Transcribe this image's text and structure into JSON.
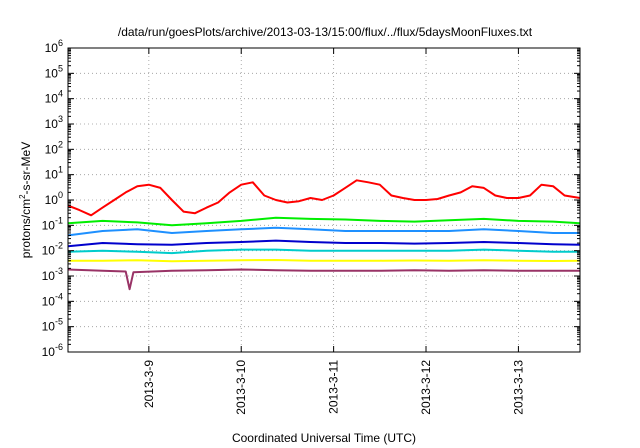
{
  "chart_data": {
    "type": "line",
    "title": "/data/run/goesPlots/archive/2013-03-13/15:00/flux/../flux/5daysMoonFluxes.txt",
    "xlabel": "Coordinated Universal Time (UTC)",
    "ylabel": "protons/cm²-s-sr-MeV",
    "ylabel_parts": {
      "pre": "protons/cm",
      "sup": "2",
      "post": "-s-sr-MeV"
    },
    "y_scale": "log",
    "ylim": [
      1e-06,
      1000000.0
    ],
    "y_ticks": [
      {
        "base": "10",
        "exp": "-6"
      },
      {
        "base": "10",
        "exp": "-5"
      },
      {
        "base": "10",
        "exp": "-4"
      },
      {
        "base": "10",
        "exp": "-3"
      },
      {
        "base": "10",
        "exp": "-2"
      },
      {
        "base": "10",
        "exp": "-1"
      },
      {
        "base": "10",
        "exp": "0"
      },
      {
        "base": "10",
        "exp": "1"
      },
      {
        "base": "10",
        "exp": "2"
      },
      {
        "base": "10",
        "exp": "3"
      },
      {
        "base": "10",
        "exp": "4"
      },
      {
        "base": "10",
        "exp": "5"
      },
      {
        "base": "10",
        "exp": "6"
      }
    ],
    "x_range_days": [
      "2013-03-08 03:00",
      "2013-03-13 16:00"
    ],
    "x_ticks": [
      "2013-3-9",
      "2013-3-10",
      "2013-3-11",
      "2013-3-12",
      "2013-3-13"
    ],
    "grid": true,
    "legend": "none",
    "series": [
      {
        "color": "#ff0000",
        "x": [
          "2013-03-08 03:00",
          "2013-03-08 06:00",
          "2013-03-08 09:00",
          "2013-03-08 12:00",
          "2013-03-08 15:00",
          "2013-03-08 18:00",
          "2013-03-08 21:00",
          "2013-03-09 00:00",
          "2013-03-09 03:00",
          "2013-03-09 06:00",
          "2013-03-09 09:00",
          "2013-03-09 12:00",
          "2013-03-09 15:00",
          "2013-03-09 18:00",
          "2013-03-09 21:00",
          "2013-03-10 00:00",
          "2013-03-10 03:00",
          "2013-03-10 06:00",
          "2013-03-10 09:00",
          "2013-03-10 12:00",
          "2013-03-10 15:00",
          "2013-03-10 18:00",
          "2013-03-10 21:00",
          "2013-03-11 00:00",
          "2013-03-11 03:00",
          "2013-03-11 06:00",
          "2013-03-11 09:00",
          "2013-03-11 12:00",
          "2013-03-11 15:00",
          "2013-03-11 18:00",
          "2013-03-11 21:00",
          "2013-03-12 00:00",
          "2013-03-12 03:00",
          "2013-03-12 06:00",
          "2013-03-12 09:00",
          "2013-03-12 12:00",
          "2013-03-12 15:00",
          "2013-03-12 18:00",
          "2013-03-12 21:00",
          "2013-03-13 00:00",
          "2013-03-13 03:00",
          "2013-03-13 06:00",
          "2013-03-13 09:00",
          "2013-03-13 12:00",
          "2013-03-13 16:00"
        ],
        "values": [
          0.6,
          0.4,
          0.25,
          0.5,
          1.0,
          2.0,
          3.5,
          4.0,
          3.0,
          1.0,
          0.35,
          0.3,
          0.5,
          0.8,
          2.0,
          4.0,
          5.0,
          1.5,
          1.0,
          0.8,
          0.9,
          1.2,
          1.0,
          1.5,
          3.0,
          6.0,
          5.0,
          4.0,
          1.5,
          1.2,
          1.0,
          1.0,
          1.1,
          1.5,
          2.0,
          3.5,
          3.0,
          1.5,
          1.2,
          1.2,
          1.5,
          4.0,
          3.5,
          1.5,
          1.2
        ]
      },
      {
        "color": "#00ee00",
        "x": [
          "2013-03-08 03:00",
          "2013-03-08 12:00",
          "2013-03-08 21:00",
          "2013-03-09 06:00",
          "2013-03-09 15:00",
          "2013-03-10 00:00",
          "2013-03-10 09:00",
          "2013-03-10 18:00",
          "2013-03-11 03:00",
          "2013-03-11 12:00",
          "2013-03-11 21:00",
          "2013-03-12 06:00",
          "2013-03-12 15:00",
          "2013-03-13 00:00",
          "2013-03-13 09:00",
          "2013-03-13 16:00"
        ],
        "values": [
          0.12,
          0.15,
          0.13,
          0.1,
          0.12,
          0.15,
          0.2,
          0.18,
          0.17,
          0.15,
          0.14,
          0.16,
          0.18,
          0.15,
          0.14,
          0.12
        ]
      },
      {
        "color": "#1e90ff",
        "x": [
          "2013-03-08 03:00",
          "2013-03-08 12:00",
          "2013-03-08 21:00",
          "2013-03-09 06:00",
          "2013-03-09 15:00",
          "2013-03-10 00:00",
          "2013-03-10 09:00",
          "2013-03-10 18:00",
          "2013-03-11 03:00",
          "2013-03-11 12:00",
          "2013-03-11 21:00",
          "2013-03-12 06:00",
          "2013-03-12 15:00",
          "2013-03-13 00:00",
          "2013-03-13 09:00",
          "2013-03-13 16:00"
        ],
        "values": [
          0.04,
          0.06,
          0.07,
          0.05,
          0.06,
          0.07,
          0.08,
          0.07,
          0.06,
          0.06,
          0.06,
          0.06,
          0.07,
          0.06,
          0.05,
          0.05
        ]
      },
      {
        "color": "#0000cc",
        "x": [
          "2013-03-08 03:00",
          "2013-03-08 12:00",
          "2013-03-08 21:00",
          "2013-03-09 06:00",
          "2013-03-09 15:00",
          "2013-03-10 00:00",
          "2013-03-10 09:00",
          "2013-03-10 18:00",
          "2013-03-11 03:00",
          "2013-03-11 12:00",
          "2013-03-11 21:00",
          "2013-03-12 06:00",
          "2013-03-12 15:00",
          "2013-03-13 00:00",
          "2013-03-13 09:00",
          "2013-03-13 16:00"
        ],
        "values": [
          0.015,
          0.02,
          0.018,
          0.017,
          0.02,
          0.022,
          0.025,
          0.022,
          0.02,
          0.02,
          0.019,
          0.02,
          0.022,
          0.02,
          0.018,
          0.017
        ]
      },
      {
        "color": "#00cccc",
        "x": [
          "2013-03-08 03:00",
          "2013-03-08 12:00",
          "2013-03-08 21:00",
          "2013-03-09 06:00",
          "2013-03-09 15:00",
          "2013-03-10 00:00",
          "2013-03-10 09:00",
          "2013-03-10 18:00",
          "2013-03-11 03:00",
          "2013-03-11 12:00",
          "2013-03-11 21:00",
          "2013-03-12 06:00",
          "2013-03-12 15:00",
          "2013-03-13 00:00",
          "2013-03-13 09:00",
          "2013-03-13 16:00"
        ],
        "values": [
          0.009,
          0.01,
          0.009,
          0.008,
          0.01,
          0.011,
          0.011,
          0.01,
          0.01,
          0.01,
          0.01,
          0.01,
          0.011,
          0.01,
          0.009,
          0.009
        ]
      },
      {
        "color": "#ffff00",
        "x": [
          "2013-03-08 03:00",
          "2013-03-08 12:00",
          "2013-03-08 21:00",
          "2013-03-09 06:00",
          "2013-03-09 15:00",
          "2013-03-10 00:00",
          "2013-03-10 09:00",
          "2013-03-10 18:00",
          "2013-03-11 03:00",
          "2013-03-11 12:00",
          "2013-03-11 21:00",
          "2013-03-12 06:00",
          "2013-03-12 15:00",
          "2013-03-13 00:00",
          "2013-03-13 09:00",
          "2013-03-13 16:00"
        ],
        "values": [
          0.004,
          0.004,
          0.0042,
          0.0038,
          0.004,
          0.0042,
          0.0043,
          0.004,
          0.004,
          0.004,
          0.0041,
          0.004,
          0.0042,
          0.004,
          0.0039,
          0.004
        ]
      },
      {
        "color": "#993366",
        "x": [
          "2013-03-08 03:00",
          "2013-03-08 12:00",
          "2013-03-08 18:00",
          "2013-03-08 19:00",
          "2013-03-08 20:00",
          "2013-03-09 06:00",
          "2013-03-09 15:00",
          "2013-03-10 00:00",
          "2013-03-10 09:00",
          "2013-03-10 18:00",
          "2013-03-11 03:00",
          "2013-03-11 12:00",
          "2013-03-11 21:00",
          "2013-03-12 06:00",
          "2013-03-12 15:00",
          "2013-03-13 00:00",
          "2013-03-13 09:00",
          "2013-03-13 16:00"
        ],
        "values": [
          0.0018,
          0.0016,
          0.0015,
          0.0003,
          0.0014,
          0.0016,
          0.0017,
          0.0018,
          0.0017,
          0.0016,
          0.0016,
          0.0016,
          0.0017,
          0.0016,
          0.0017,
          0.0016,
          0.0016,
          0.0016
        ]
      }
    ]
  }
}
